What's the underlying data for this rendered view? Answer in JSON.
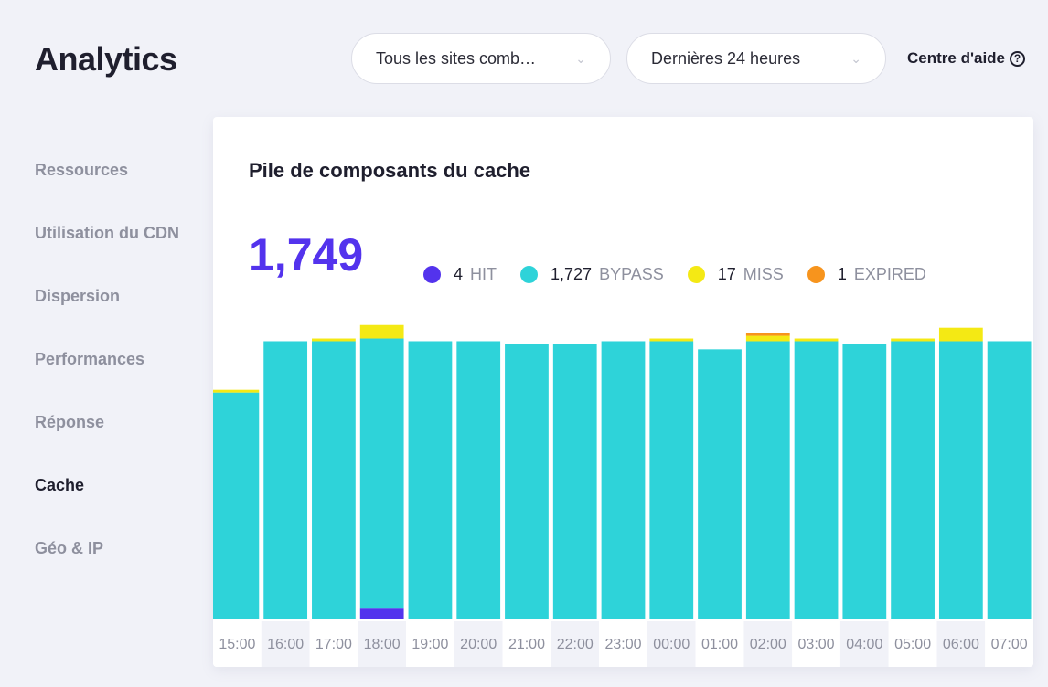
{
  "header": {
    "title": "Analytics",
    "site_select": "Tous les sites comb…",
    "range_select": "Dernières 24 heures",
    "help": "Centre d'aide"
  },
  "sidebar": {
    "items": [
      {
        "label": "Ressources",
        "active": false
      },
      {
        "label": "Utilisation du CDN",
        "active": false
      },
      {
        "label": "Dispersion",
        "active": false
      },
      {
        "label": "Performances",
        "active": false
      },
      {
        "label": "Réponse",
        "active": false
      },
      {
        "label": "Cache",
        "active": true
      },
      {
        "label": "Géo & IP",
        "active": false
      }
    ]
  },
  "card": {
    "title": "Pile de composants du cache",
    "total": "1,749",
    "legend": [
      {
        "value": "4",
        "label": "HIT",
        "color": "#5333ed"
      },
      {
        "value": "1,727",
        "label": "BYPASS",
        "color": "#2ed3d9"
      },
      {
        "value": "17",
        "label": "MISS",
        "color": "#f4e914"
      },
      {
        "value": "1",
        "label": "EXPIRED",
        "color": "#f7941d"
      }
    ]
  },
  "chart_data": {
    "type": "bar",
    "stacked": true,
    "categories": [
      "15:00",
      "16:00",
      "17:00",
      "18:00",
      "19:00",
      "20:00",
      "21:00",
      "22:00",
      "23:00",
      "00:00",
      "01:00",
      "02:00",
      "03:00",
      "04:00",
      "05:00",
      "06:00",
      "07:00"
    ],
    "series": [
      {
        "name": "HIT",
        "color": "#5333ed",
        "values": [
          0,
          0,
          0,
          4,
          0,
          0,
          0,
          0,
          0,
          0,
          0,
          0,
          0,
          0,
          0,
          0,
          0
        ]
      },
      {
        "name": "BYPASS",
        "color": "#2ed3d9",
        "values": [
          84,
          103,
          103,
          100,
          103,
          103,
          102,
          102,
          103,
          103,
          100,
          103,
          103,
          102,
          103,
          103,
          103
        ]
      },
      {
        "name": "MISS",
        "color": "#f4e914",
        "values": [
          1,
          0,
          1,
          5,
          0,
          0,
          0,
          0,
          0,
          1,
          0,
          2,
          1,
          0,
          1,
          5,
          0
        ]
      },
      {
        "name": "EXPIRED",
        "color": "#f7941d",
        "values": [
          0,
          0,
          0,
          0,
          0,
          0,
          0,
          0,
          0,
          0,
          0,
          1,
          0,
          0,
          0,
          0,
          0
        ]
      }
    ],
    "ylim": [
      0,
      115
    ],
    "grid": false,
    "legend": "top"
  }
}
